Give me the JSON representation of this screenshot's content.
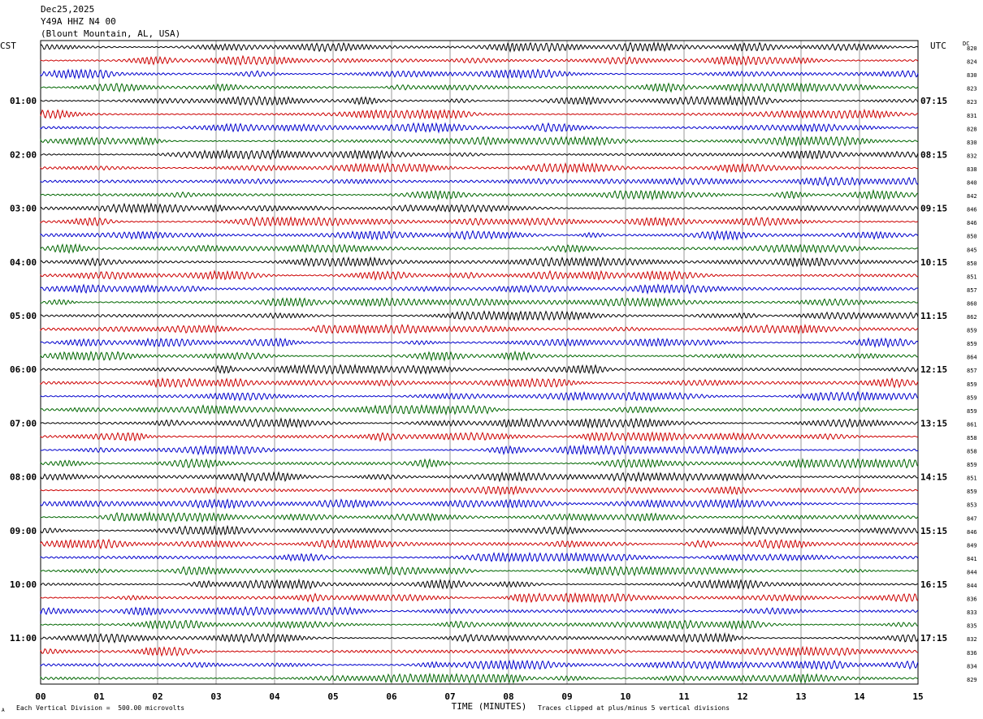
{
  "header": {
    "date": "Dec25,2025",
    "station": "Y49A HHZ N4 00",
    "location": "(Blount Mountain, AL, USA)"
  },
  "footer": {
    "vertical_division": "Each Vertical Division =  500.00 microvolts",
    "clip_note": "Traces clipped at plus/minus 5 vertical divisions",
    "corner_mark": "A"
  },
  "chart_data": {
    "type": "line",
    "subtype": "helicorder",
    "xlabel": "TIME (MINUTES)",
    "x_ticks": [
      "00",
      "01",
      "02",
      "03",
      "04",
      "05",
      "06",
      "07",
      "08",
      "09",
      "10",
      "11",
      "12",
      "13",
      "14",
      "15"
    ],
    "xlim": [
      0,
      15
    ],
    "left_axis_title": "CST",
    "right_axis_title": "UTC",
    "dc_axis_title": "DC",
    "left_labels": [
      {
        "row": 4,
        "text": "01:00"
      },
      {
        "row": 8,
        "text": "02:00"
      },
      {
        "row": 12,
        "text": "03:00"
      },
      {
        "row": 16,
        "text": "04:00"
      },
      {
        "row": 20,
        "text": "05:00"
      },
      {
        "row": 24,
        "text": "06:00"
      },
      {
        "row": 28,
        "text": "07:00"
      },
      {
        "row": 32,
        "text": "08:00"
      },
      {
        "row": 36,
        "text": "09:00"
      },
      {
        "row": 40,
        "text": "10:00"
      },
      {
        "row": 44,
        "text": "11:00"
      }
    ],
    "right_labels": [
      {
        "row": 4,
        "text": "07:15"
      },
      {
        "row": 8,
        "text": "08:15"
      },
      {
        "row": 12,
        "text": "09:15"
      },
      {
        "row": 16,
        "text": "10:15"
      },
      {
        "row": 20,
        "text": "11:15"
      },
      {
        "row": 24,
        "text": "12:15"
      },
      {
        "row": 28,
        "text": "13:15"
      },
      {
        "row": 32,
        "text": "14:15"
      },
      {
        "row": 36,
        "text": "15:15"
      },
      {
        "row": 40,
        "text": "16:15"
      },
      {
        "row": 44,
        "text": "17:15"
      }
    ],
    "dc_values": [
      "820",
      "824",
      "830",
      "823",
      "823",
      "831",
      "828",
      "830",
      "832",
      "838",
      "840",
      "842",
      "846",
      "846",
      "850",
      "845",
      "850",
      "851",
      "857",
      "860",
      "862",
      "859",
      "859",
      "864",
      "857",
      "859",
      "859",
      "859",
      "861",
      "858",
      "858",
      "859",
      "851",
      "859",
      "853",
      "847",
      "846",
      "849",
      "841",
      "844",
      "844",
      "836",
      "833",
      "835",
      "832",
      "836",
      "834",
      "829"
    ],
    "series_colors": [
      "#000000",
      "#cc0000",
      "#0000cc",
      "#006600"
    ],
    "grid": true
  }
}
